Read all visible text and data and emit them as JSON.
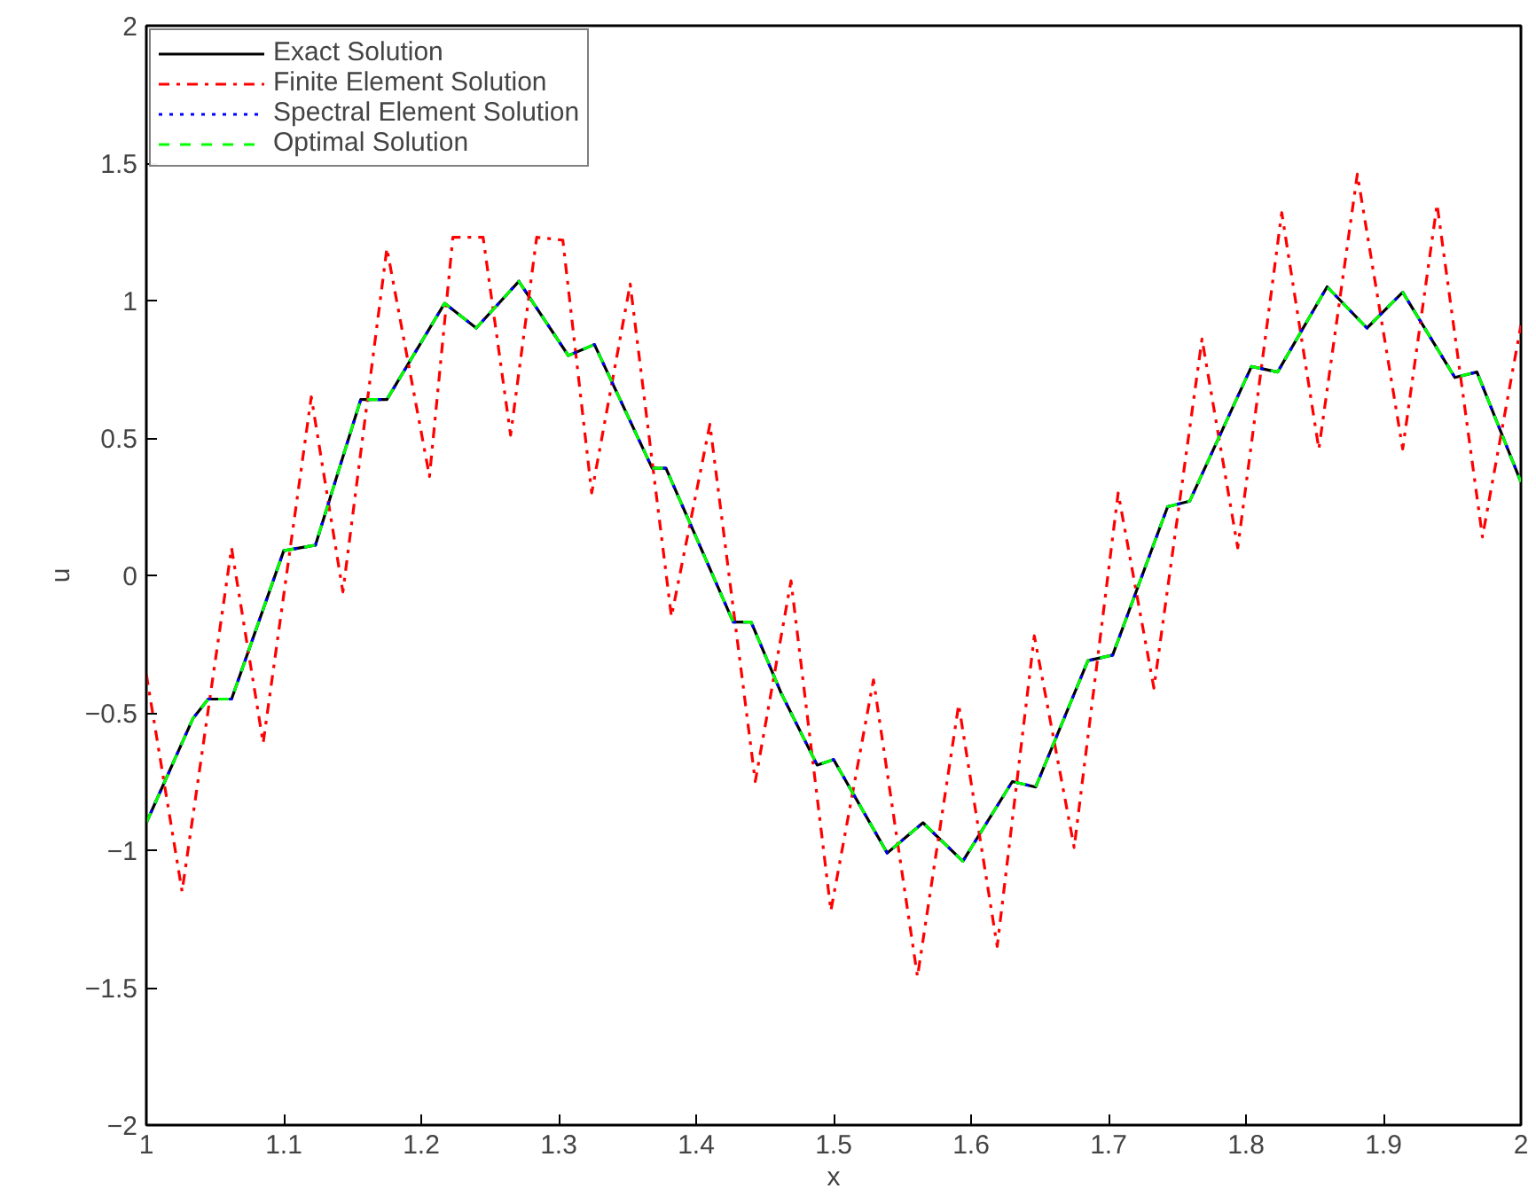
{
  "chart_data": {
    "type": "line",
    "xlabel": "x",
    "ylabel": "u",
    "xlim": [
      1,
      2
    ],
    "ylim": [
      -2,
      2
    ],
    "xticks": [
      1,
      1.1,
      1.2,
      1.3,
      1.4,
      1.5,
      1.6,
      1.7,
      1.8,
      1.9,
      2
    ],
    "yticks": [
      {
        "value": -2,
        "label": "−2"
      },
      {
        "value": -1.5,
        "label": "−1.5"
      },
      {
        "value": -1,
        "label": "−1"
      },
      {
        "value": -0.5,
        "label": "−0.5"
      },
      0,
      0.5,
      1,
      1.5,
      2
    ],
    "grid": false,
    "legend": "top left",
    "series": [
      {
        "name": "Exact Solution",
        "color": "#000000",
        "line_style": "solid",
        "x": [
          1.0,
          1.034,
          1.045,
          1.062,
          1.1,
          1.123,
          1.156,
          1.175,
          1.217,
          1.24,
          1.271,
          1.307,
          1.326,
          1.368,
          1.378,
          1.427,
          1.44,
          1.462,
          1.488,
          1.5,
          1.539,
          1.565,
          1.594,
          1.63,
          1.647,
          1.685,
          1.703,
          1.743,
          1.759,
          1.804,
          1.823,
          1.859,
          1.888,
          1.914,
          1.952,
          1.968,
          2.0
        ],
        "values": [
          -0.9,
          -0.52,
          -0.45,
          -0.45,
          0.09,
          0.11,
          0.64,
          0.64,
          0.99,
          0.9,
          1.07,
          0.8,
          0.84,
          0.39,
          0.39,
          -0.17,
          -0.17,
          -0.43,
          -0.69,
          -0.67,
          -1.01,
          -0.9,
          -1.04,
          -0.75,
          -0.77,
          -0.31,
          -0.29,
          0.25,
          0.27,
          0.76,
          0.74,
          1.05,
          0.9,
          1.03,
          0.72,
          0.74,
          0.34
        ]
      },
      {
        "name": "Finite Element Solution",
        "color": "#ff0000",
        "line_style": "dashdot",
        "x": [
          1.0,
          1.026,
          1.062,
          1.085,
          1.12,
          1.143,
          1.175,
          1.206,
          1.223,
          1.245,
          1.265,
          1.284,
          1.303,
          1.324,
          1.352,
          1.382,
          1.41,
          1.443,
          1.469,
          1.498,
          1.529,
          1.561,
          1.591,
          1.619,
          1.646,
          1.675,
          1.707,
          1.733,
          1.768,
          1.794,
          1.826,
          1.853,
          1.881,
          1.914,
          1.939,
          1.972,
          2.0
        ],
        "values": [
          -0.36,
          -1.15,
          0.1,
          -0.61,
          0.65,
          -0.06,
          1.19,
          0.36,
          1.23,
          1.23,
          0.51,
          1.23,
          1.22,
          0.3,
          1.06,
          -0.15,
          0.55,
          -0.75,
          -0.02,
          -1.22,
          -0.38,
          -1.46,
          -0.47,
          -1.35,
          -0.22,
          -0.99,
          0.3,
          -0.41,
          0.86,
          0.1,
          1.32,
          0.46,
          1.46,
          0.46,
          1.35,
          0.14,
          0.91
        ]
      },
      {
        "name": "Spectral Element Solution",
        "color": "#0000ff",
        "line_style": "dotted",
        "x": [
          1.0,
          1.034,
          1.045,
          1.062,
          1.1,
          1.123,
          1.156,
          1.175,
          1.217,
          1.24,
          1.271,
          1.307,
          1.326,
          1.368,
          1.378,
          1.427,
          1.44,
          1.462,
          1.488,
          1.5,
          1.539,
          1.565,
          1.594,
          1.63,
          1.647,
          1.685,
          1.703,
          1.743,
          1.759,
          1.804,
          1.823,
          1.859,
          1.888,
          1.914,
          1.952,
          1.968,
          2.0
        ],
        "values": [
          -0.9,
          -0.52,
          -0.45,
          -0.45,
          0.09,
          0.11,
          0.64,
          0.64,
          0.99,
          0.9,
          1.07,
          0.8,
          0.84,
          0.39,
          0.39,
          -0.17,
          -0.17,
          -0.43,
          -0.69,
          -0.67,
          -1.01,
          -0.9,
          -1.04,
          -0.75,
          -0.77,
          -0.31,
          -0.29,
          0.25,
          0.27,
          0.76,
          0.74,
          1.05,
          0.9,
          1.03,
          0.72,
          0.74,
          0.34
        ]
      },
      {
        "name": "Optimal Solution",
        "color": "#00ff00",
        "line_style": "dashed",
        "x": [
          1.0,
          1.034,
          1.045,
          1.062,
          1.1,
          1.123,
          1.156,
          1.175,
          1.217,
          1.24,
          1.271,
          1.307,
          1.326,
          1.368,
          1.378,
          1.427,
          1.44,
          1.462,
          1.488,
          1.5,
          1.539,
          1.565,
          1.594,
          1.63,
          1.647,
          1.685,
          1.703,
          1.743,
          1.759,
          1.804,
          1.823,
          1.859,
          1.888,
          1.914,
          1.952,
          1.968,
          2.0
        ],
        "values": [
          -0.9,
          -0.52,
          -0.45,
          -0.45,
          0.09,
          0.11,
          0.64,
          0.64,
          0.99,
          0.9,
          1.07,
          0.8,
          0.84,
          0.39,
          0.39,
          -0.17,
          -0.17,
          -0.43,
          -0.69,
          -0.67,
          -1.01,
          -0.9,
          -1.04,
          -0.75,
          -0.77,
          -0.31,
          -0.29,
          0.25,
          0.27,
          0.76,
          0.74,
          1.05,
          0.9,
          1.03,
          0.72,
          0.74,
          0.34
        ]
      }
    ]
  }
}
